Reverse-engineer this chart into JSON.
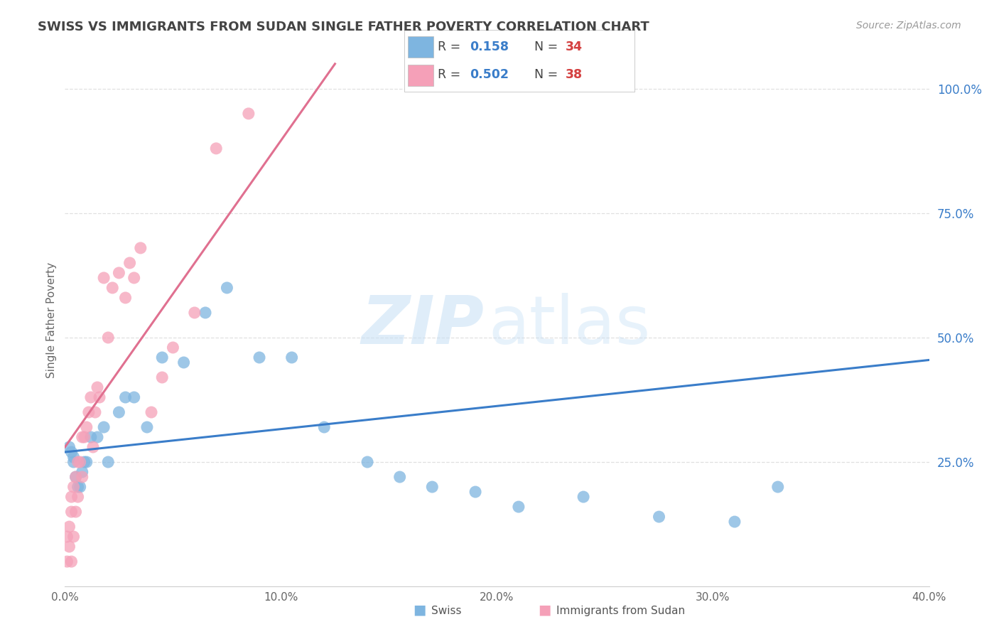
{
  "title": "SWISS VS IMMIGRANTS FROM SUDAN SINGLE FATHER POVERTY CORRELATION CHART",
  "source": "Source: ZipAtlas.com",
  "ylabel": "Single Father Poverty",
  "xlim": [
    0.0,
    0.4
  ],
  "ylim": [
    0.0,
    1.07
  ],
  "swiss_R": 0.158,
  "swiss_N": 34,
  "sudan_R": 0.502,
  "sudan_N": 38,
  "swiss_color": "#7eb5e0",
  "sudan_color": "#f5a0b8",
  "swiss_line_color": "#3a7dc9",
  "sudan_line_color": "#e07090",
  "watermark_zip": "ZIP",
  "watermark_atlas": "atlas",
  "background_color": "#ffffff",
  "grid_color": "#e0e0e0",
  "title_color": "#444444",
  "x_ticks": [
    0.0,
    0.05,
    0.1,
    0.15,
    0.2,
    0.25,
    0.3,
    0.35,
    0.4
  ],
  "x_tick_labels": [
    "0.0%",
    "",
    "10.0%",
    "",
    "20.0%",
    "",
    "30.0%",
    "",
    "40.0%"
  ],
  "y_ticks": [
    0.0,
    0.25,
    0.5,
    0.75,
    1.0
  ],
  "y_tick_labels": [
    "",
    "25.0%",
    "50.0%",
    "75.0%",
    "100.0%"
  ],
  "swiss_x": [
    0.002,
    0.003,
    0.004,
    0.004,
    0.005,
    0.006,
    0.007,
    0.008,
    0.009,
    0.01,
    0.012,
    0.015,
    0.018,
    0.02,
    0.025,
    0.028,
    0.032,
    0.038,
    0.045,
    0.055,
    0.065,
    0.075,
    0.09,
    0.105,
    0.12,
    0.14,
    0.155,
    0.17,
    0.19,
    0.21,
    0.24,
    0.275,
    0.31,
    0.33
  ],
  "swiss_y": [
    0.28,
    0.27,
    0.26,
    0.25,
    0.22,
    0.2,
    0.2,
    0.23,
    0.25,
    0.25,
    0.3,
    0.3,
    0.32,
    0.25,
    0.35,
    0.38,
    0.38,
    0.32,
    0.46,
    0.45,
    0.55,
    0.6,
    0.46,
    0.46,
    0.32,
    0.25,
    0.22,
    0.2,
    0.19,
    0.16,
    0.18,
    0.14,
    0.13,
    0.2
  ],
  "sudan_x": [
    0.001,
    0.001,
    0.002,
    0.002,
    0.003,
    0.003,
    0.003,
    0.004,
    0.004,
    0.005,
    0.005,
    0.006,
    0.006,
    0.007,
    0.008,
    0.008,
    0.009,
    0.01,
    0.011,
    0.012,
    0.013,
    0.014,
    0.015,
    0.016,
    0.018,
    0.02,
    0.022,
    0.025,
    0.028,
    0.03,
    0.032,
    0.035,
    0.04,
    0.045,
    0.05,
    0.06,
    0.07,
    0.085
  ],
  "sudan_y": [
    0.05,
    0.1,
    0.08,
    0.12,
    0.15,
    0.18,
    0.05,
    0.2,
    0.1,
    0.22,
    0.15,
    0.25,
    0.18,
    0.25,
    0.3,
    0.22,
    0.3,
    0.32,
    0.35,
    0.38,
    0.28,
    0.35,
    0.4,
    0.38,
    0.62,
    0.5,
    0.6,
    0.63,
    0.58,
    0.65,
    0.62,
    0.68,
    0.35,
    0.42,
    0.48,
    0.55,
    0.88,
    0.95
  ],
  "swiss_line_x0": 0.0,
  "swiss_line_x1": 0.4,
  "swiss_line_y0": 0.27,
  "swiss_line_y1": 0.455,
  "sudan_line_x0": 0.0,
  "sudan_line_x1": 0.125,
  "sudan_line_y0": 0.28,
  "sudan_line_y1": 1.05
}
